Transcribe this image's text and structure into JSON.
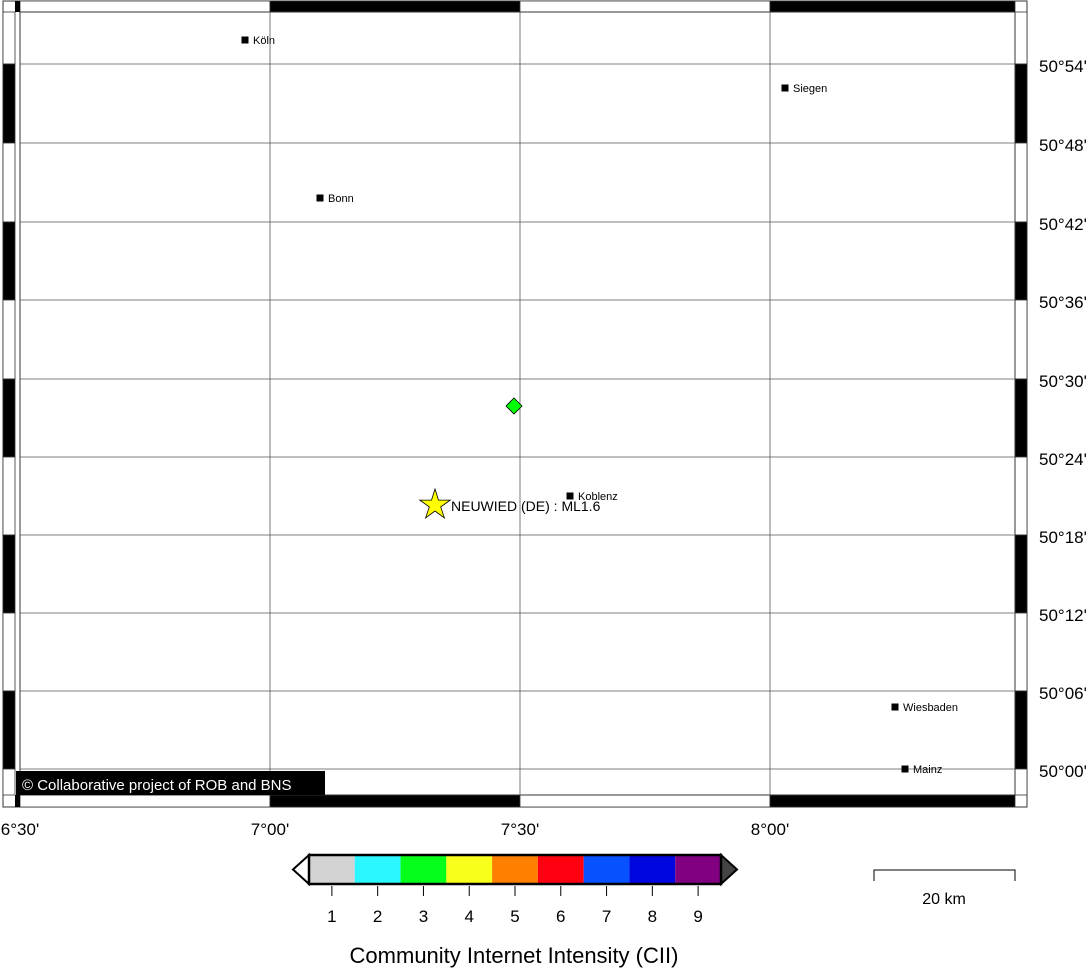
{
  "map": {
    "lon_labels": [
      "6°30'",
      "7°00'",
      "7°30'",
      "8°00'"
    ],
    "lat_labels": [
      "50°54'",
      "50°48'",
      "50°42'",
      "50°36'",
      "50°30'",
      "50°24'",
      "50°18'",
      "50°12'",
      "50°06'",
      "50°00'"
    ],
    "cities": [
      "Köln",
      "Siegen",
      "Bonn",
      "Koblenz",
      "Wiesbaden",
      "Mainz"
    ],
    "event_label": "NEUWIED (DE) : ML1.6",
    "event_marker_color": "#ffff00",
    "report_marker_color": "#00ff00",
    "copyright": "© Collaborative project of ROB and BNS"
  },
  "legend": {
    "title": "Community Internet Intensity (CII)",
    "ticks": [
      "1",
      "2",
      "3",
      "4",
      "5",
      "6",
      "7",
      "8",
      "9"
    ],
    "colors": [
      "#d3d3d3",
      "#2af7ff",
      "#06ff1a",
      "#f7ff1a",
      "#ff7f00",
      "#ff0010",
      "#0751ff",
      "#0006e0",
      "#800080"
    ]
  },
  "scale_bar": {
    "label": "20 km"
  }
}
